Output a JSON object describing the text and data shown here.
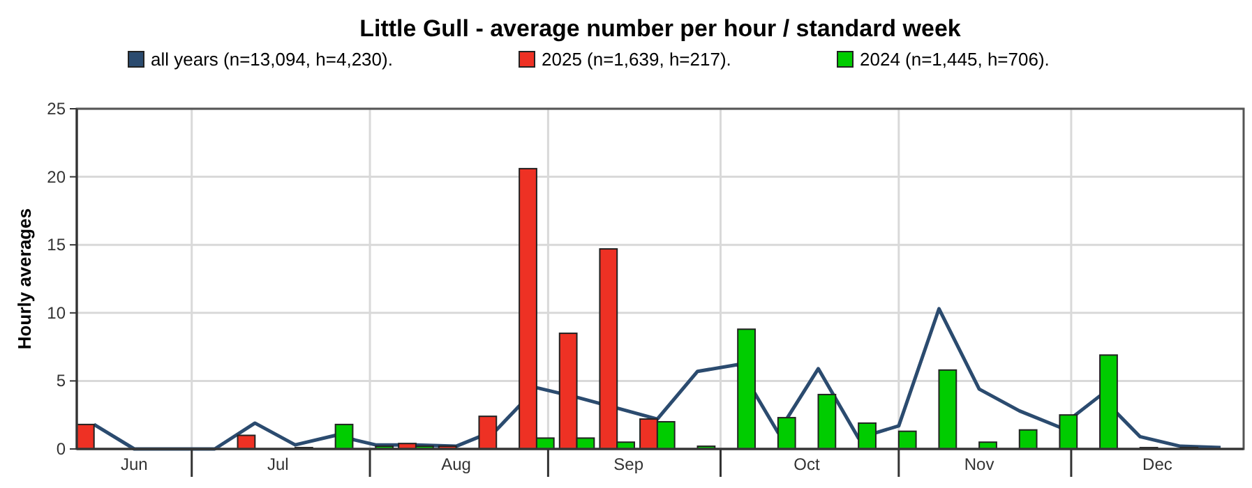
{
  "chart_data": {
    "type": "bar",
    "title": "Little Gull - average number per hour / standard week",
    "ylabel": "Hourly averages",
    "x": [
      "--06-14",
      "--06-21",
      "--06-28",
      "--07-05",
      "--07-12",
      "--07-19",
      "--07-26",
      "--08-02",
      "--08-09",
      "--08-16",
      "--08-23",
      "--08-30",
      "--09-06",
      "--09-13",
      "--09-20",
      "--09-27",
      "--10-04",
      "--10-11",
      "--10-18",
      "--10-25",
      "--11-01",
      "--11-08",
      "--11-15",
      "--11-22",
      "--11-29",
      "--12-06",
      "--12-13",
      "--12-20",
      "--12-27"
    ],
    "xlim": [
      "--06-11",
      "--12-31"
    ],
    "xticks": [
      {
        "value": "--06-21",
        "label": "Jun"
      },
      {
        "value": "--07-01",
        "label": null
      },
      {
        "value": "--07-16",
        "label": "Jul"
      },
      {
        "value": "--08-01",
        "label": null
      },
      {
        "value": "--08-16",
        "label": "Aug"
      },
      {
        "value": "--09-01",
        "label": null
      },
      {
        "value": "--09-15",
        "label": "Sep"
      },
      {
        "value": "--10-01",
        "label": null
      },
      {
        "value": "--10-16",
        "label": "Oct"
      },
      {
        "value": "--11-01",
        "label": null
      },
      {
        "value": "--11-15",
        "label": "Nov"
      },
      {
        "value": "--12-01",
        "label": null
      },
      {
        "value": "--12-16",
        "label": "Dec"
      }
    ],
    "ylim": [
      0,
      25
    ],
    "yticks": [
      0,
      5,
      10,
      15,
      20,
      25
    ],
    "grid": true,
    "legend": "top",
    "series": [
      {
        "name": "all years (n=13,094, h=4,230).",
        "type": "line",
        "color": "#2b4b6f",
        "values": [
          1.8,
          0,
          0,
          0,
          1.9,
          0.3,
          1.0,
          0.3,
          0.3,
          0.2,
          1.4,
          4.5,
          3.8,
          3.0,
          2.2,
          5.7,
          6.2,
          1.2,
          5.9,
          0.8,
          1.7,
          10.3,
          4.4,
          2.8,
          1.6,
          3.9,
          0.9,
          0.2,
          0.1
        ]
      },
      {
        "name": "2025 (n=1,639, h=217).",
        "color": "#ee3124",
        "values": [
          1.8,
          null,
          null,
          null,
          1.0,
          null,
          null,
          null,
          0.4,
          0.2,
          2.4,
          20.6,
          8.5,
          14.7,
          2.2,
          null,
          null,
          null,
          null,
          null,
          null,
          null,
          null,
          null,
          null,
          null,
          null,
          null,
          null
        ]
      },
      {
        "name": "2024 (n=1,445, h=706).",
        "color": "#00cc00",
        "values": [
          null,
          null,
          null,
          null,
          null,
          0.1,
          1.8,
          0.2,
          0.2,
          null,
          null,
          0.8,
          0.8,
          0.5,
          2.0,
          0.2,
          8.8,
          2.3,
          4.0,
          1.9,
          1.3,
          5.8,
          0.5,
          1.4,
          2.5,
          6.9,
          0.1,
          0.1,
          null
        ]
      }
    ]
  }
}
